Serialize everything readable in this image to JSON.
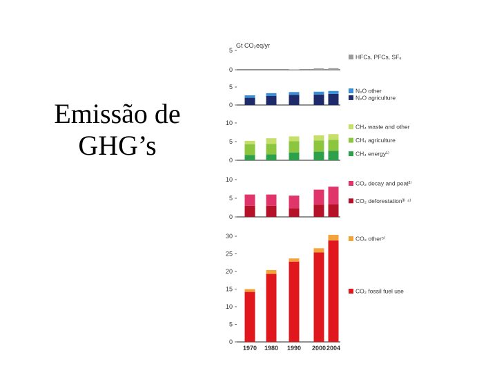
{
  "slide": {
    "title_line1": "Emissão de",
    "title_line2": "GHG’s"
  },
  "chart_data": {
    "type": "bar",
    "stacked": true,
    "categories": [
      "1970",
      "1980",
      "1990",
      "2000",
      "2004"
    ],
    "ylabel": "Gt CO₂eq/yr",
    "panels": [
      {
        "ylim": [
          0,
          5
        ],
        "ticks": [
          0,
          5
        ],
        "series": [
          {
            "name": "HFCs, PFCs, SF₆",
            "color": "#9a9a9a",
            "values": [
              0.0,
              0.0,
              0.1,
              0.35,
              0.4
            ]
          }
        ]
      },
      {
        "ylim": [
          0,
          5
        ],
        "ticks": [
          0,
          5
        ],
        "series": [
          {
            "name": "N₂O agriculture",
            "color": "#1f2a6b",
            "values": [
              2.0,
              2.5,
              2.8,
              2.9,
              3.1
            ]
          },
          {
            "name": "N₂O other",
            "color": "#3b8fd6",
            "values": [
              0.7,
              0.8,
              0.8,
              0.8,
              0.8
            ]
          }
        ]
      },
      {
        "ylim": [
          0,
          10
        ],
        "ticks": [
          0,
          5,
          10
        ],
        "series": [
          {
            "name": "CH₄ energy¹⁾",
            "color": "#2ca04a",
            "values": [
              1.4,
              1.6,
              2.1,
              2.3,
              2.5
            ]
          },
          {
            "name": "CH₄ agriculture",
            "color": "#8cc63f",
            "values": [
              2.9,
              2.8,
              3.0,
              3.0,
              3.0
            ]
          },
          {
            "name": "CH₄ waste and other",
            "color": "#c6df6a",
            "values": [
              0.9,
              1.5,
              1.3,
              1.4,
              1.5
            ]
          }
        ]
      },
      {
        "ylim": [
          0,
          10
        ],
        "ticks": [
          0,
          5,
          10
        ],
        "series": [
          {
            "name": "CO₂ deforestation³⁾ ⁴⁾",
            "color": "#b5122a",
            "values": [
              3.0,
              3.0,
              2.3,
              3.3,
              3.4
            ]
          },
          {
            "name": "CO₂ decay and peat²⁾",
            "color": "#e0356a",
            "values": [
              3.0,
              3.0,
              3.4,
              4.0,
              4.7
            ]
          }
        ]
      },
      {
        "ylim": [
          0,
          30
        ],
        "ticks": [
          0,
          5,
          10,
          15,
          20,
          25,
          30
        ],
        "series": [
          {
            "name": "CO₂ fossil fuel use",
            "color": "#e0171d",
            "values": [
              14.2,
              19.3,
              22.8,
              25.4,
              28.8
            ]
          },
          {
            "name": "CO₂ other⁵⁾",
            "color": "#f3a33b",
            "values": [
              0.8,
              1.1,
              0.9,
              1.2,
              1.6
            ]
          }
        ]
      }
    ]
  }
}
